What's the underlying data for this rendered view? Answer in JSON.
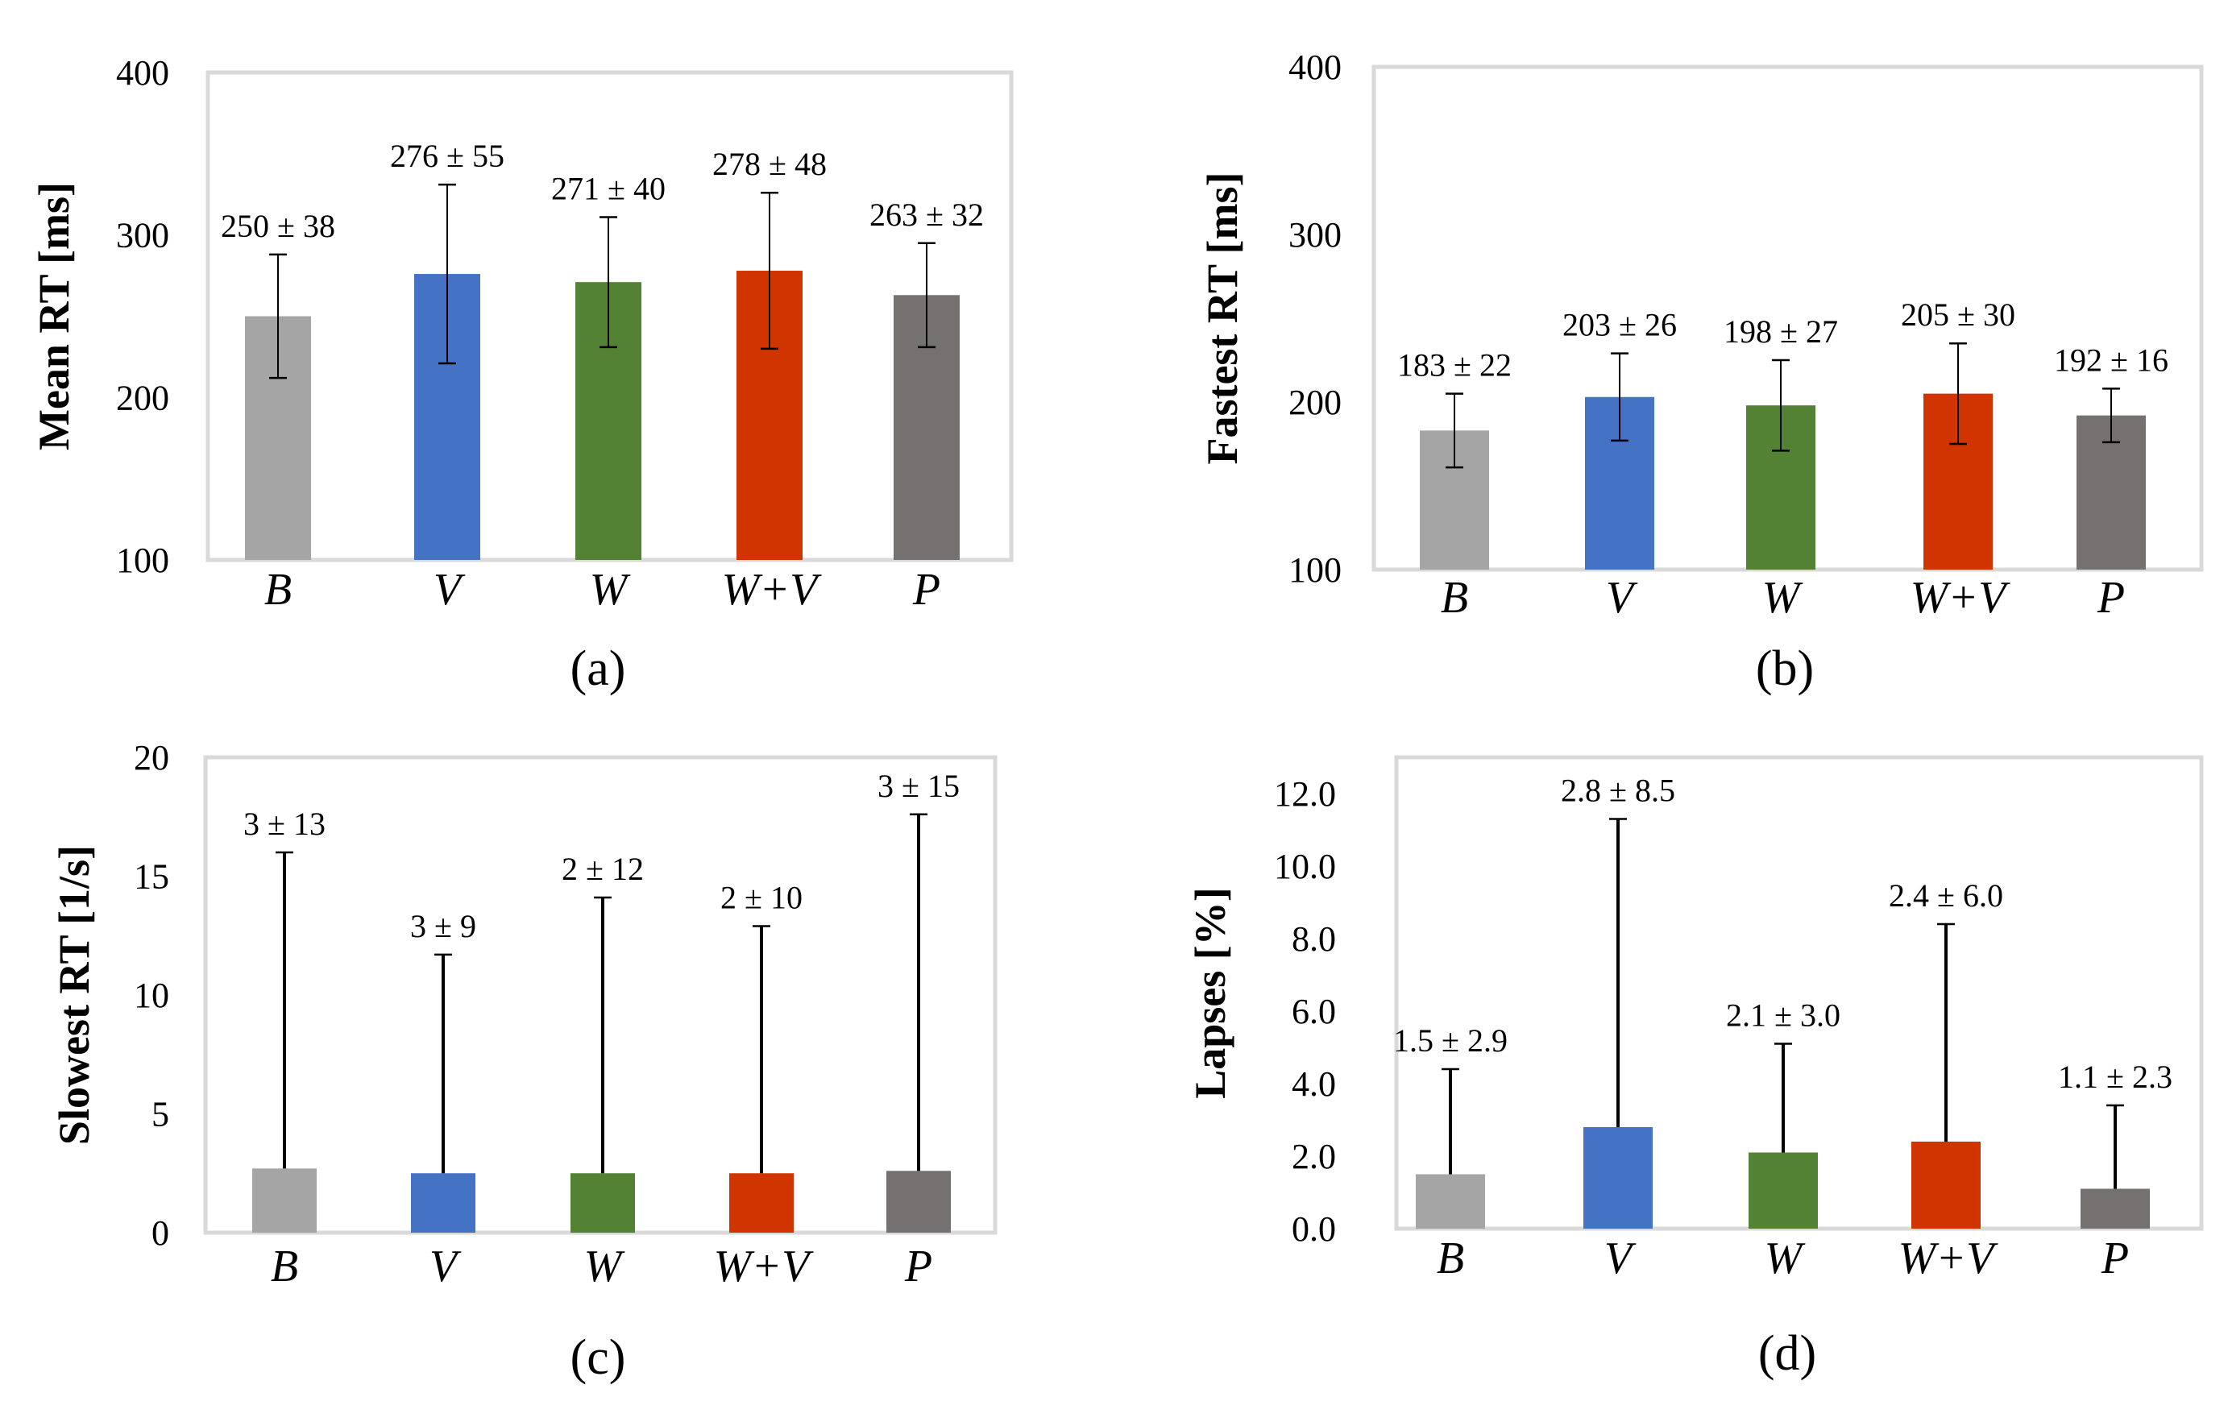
{
  "chart_data": [
    {
      "type": "bar",
      "caption": "(a)",
      "ylabel": "Mean RT [ms]",
      "ylim": [
        100,
        400
      ],
      "yticks": [
        "100",
        "200",
        "300",
        "400"
      ],
      "ytick_values": [
        100,
        200,
        300,
        400
      ],
      "categories": [
        "B",
        "V",
        "W",
        "W+V",
        "P"
      ],
      "values": [
        250,
        276,
        271,
        278,
        263
      ],
      "errors": [
        38,
        55,
        40,
        48,
        32
      ],
      "value_labels": [
        "250 ±  38",
        "276 ± 55",
        "271 ± 40",
        "278 ± 48",
        "263 ± 32"
      ],
      "colors": [
        "#a5a5a5",
        "#4472c4",
        "#548235",
        "#d03500",
        "#767171"
      ],
      "error_style": "both",
      "grid": false
    },
    {
      "type": "bar",
      "caption": "(b)",
      "ylabel": "Fastest RT [ms]",
      "ylim": [
        100,
        400
      ],
      "yticks": [
        "100",
        "200",
        "300",
        "400"
      ],
      "ytick_values": [
        100,
        200,
        300,
        400
      ],
      "categories": [
        "B",
        "V",
        "W",
        "W+V",
        "P"
      ],
      "values": [
        183,
        203,
        198,
        205,
        192
      ],
      "errors": [
        22,
        26,
        27,
        30,
        16
      ],
      "value_labels": [
        "183 ± 22",
        "203 ± 26",
        "198 ± 27",
        "205 ± 30",
        "192 ± 16"
      ],
      "colors": [
        "#a5a5a5",
        "#4472c4",
        "#548235",
        "#d03500",
        "#767171"
      ],
      "error_style": "both",
      "grid": false
    },
    {
      "type": "bar",
      "caption": "(c)",
      "ylabel": "Slowest RT [1/s]",
      "ylim": [
        0,
        20
      ],
      "yticks": [
        "0",
        "5",
        "10",
        "15",
        "20"
      ],
      "ytick_values": [
        0,
        5,
        10,
        15,
        20
      ],
      "categories": [
        "B",
        "V",
        "W",
        "W+V",
        "P"
      ],
      "values": [
        2.7,
        2.5,
        2.5,
        2.5,
        2.6
      ],
      "errors": [
        13.3,
        9.2,
        11.6,
        10.4,
        15.0
      ],
      "value_labels": [
        "3 ± 13",
        "3 ± 9",
        "2 ± 12",
        "2 ± 10",
        "3 ± 15"
      ],
      "colors": [
        "#a5a5a5",
        "#4472c4",
        "#548235",
        "#d03500",
        "#767171"
      ],
      "error_style": "plus",
      "grid": false
    },
    {
      "type": "bar",
      "caption": "(d)",
      "ylabel": "Lapses [%]",
      "ylim": [
        0,
        13
      ],
      "yticks": [
        "0.0",
        "2.0",
        "4.0",
        "6.0",
        "8.0",
        "10.0",
        "12.0"
      ],
      "ytick_values": [
        0,
        2,
        4,
        6,
        8,
        10,
        12
      ],
      "categories": [
        "B",
        "V",
        "W",
        "W+V",
        "P"
      ],
      "values": [
        1.5,
        2.8,
        2.1,
        2.4,
        1.1
      ],
      "errors": [
        2.9,
        8.5,
        3.0,
        6.0,
        2.3
      ],
      "value_labels": [
        "1.5 ± 2.9",
        "2.8 ± 8.5",
        "2.1 ± 3.0",
        "2.4 ± 6.0",
        "1.1 ± 2.3"
      ],
      "colors": [
        "#a5a5a5",
        "#4472c4",
        "#548235",
        "#d03500",
        "#767171"
      ],
      "error_style": "plus",
      "grid": false
    }
  ]
}
